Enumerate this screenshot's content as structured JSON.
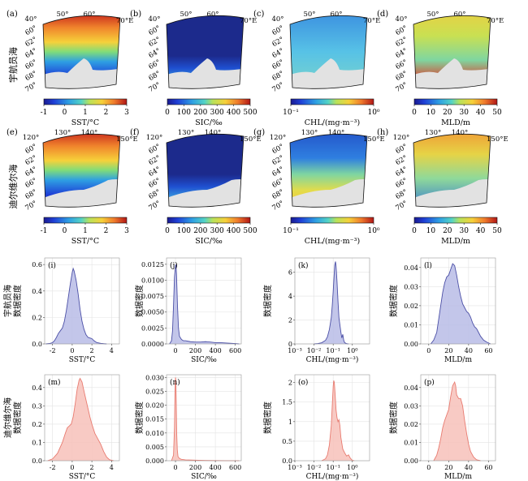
{
  "maps": [
    {
      "label": "(a)",
      "lon_ticks": [
        "40°",
        "50°",
        "60°",
        "70°E"
      ],
      "lat_ticks": [
        "60°",
        "62°",
        "64°",
        "66°",
        "68°",
        "70°"
      ],
      "field": "sst",
      "cmap": "jet",
      "cbar_ticks": [
        "-1",
        "0",
        "1",
        "2",
        "3"
      ],
      "cbar_label": "SST/°C"
    },
    {
      "label": "(b)",
      "lon_ticks": [
        "40°",
        "50°",
        "60°",
        "70°E"
      ],
      "lat_ticks": [
        "60°",
        "62°",
        "64°",
        "66°",
        "68°",
        "70°"
      ],
      "field": "sic",
      "cmap": "jet",
      "cbar_ticks": [
        "0",
        "100",
        "200",
        "300",
        "400",
        "500"
      ],
      "cbar_label": "SIC/‰"
    },
    {
      "label": "(c)",
      "lon_ticks": [
        "40°",
        "50°",
        "60°",
        "70°E"
      ],
      "lat_ticks": [
        "60°",
        "62°",
        "64°",
        "66°",
        "68°",
        "70°"
      ],
      "field": "chl",
      "cmap": "jet",
      "cbar_ticks": [
        "10⁻¹",
        "10⁰"
      ],
      "cbar_label": "CHL/(mg·m⁻³)"
    },
    {
      "label": "(d)",
      "lon_ticks": [
        "40°",
        "50°",
        "60°",
        "70°E"
      ],
      "lat_ticks": [
        "60°",
        "62°",
        "64°",
        "66°",
        "68°",
        "70°"
      ],
      "field": "mld",
      "cmap": "jet",
      "cbar_ticks": [
        "0",
        "10",
        "20",
        "30",
        "40",
        "50"
      ],
      "cbar_label": "MLD/m"
    },
    {
      "label": "(e)",
      "lon_ticks": [
        "120°",
        "130°",
        "140°",
        "150°E"
      ],
      "lat_ticks": [
        "60°",
        "62°",
        "64°",
        "66°",
        "68°",
        "70°"
      ],
      "field": "sst",
      "cmap": "jet",
      "cbar_ticks": [
        "-1",
        "0",
        "1",
        "2",
        "3"
      ],
      "cbar_label": "SST/°C"
    },
    {
      "label": "(f)",
      "lon_ticks": [
        "120°",
        "130°",
        "140°",
        "150°E"
      ],
      "lat_ticks": [
        "60°",
        "62°",
        "64°",
        "66°",
        "68°",
        "70°"
      ],
      "field": "sic",
      "cmap": "jet",
      "cbar_ticks": [
        "0",
        "100",
        "200",
        "300",
        "400",
        "500"
      ],
      "cbar_label": "SIC/‰"
    },
    {
      "label": "(g)",
      "lon_ticks": [
        "120°",
        "130°",
        "140°",
        "150°E"
      ],
      "lat_ticks": [
        "60°",
        "62°",
        "64°",
        "66°",
        "68°",
        "70°"
      ],
      "field": "chl",
      "cmap": "jet",
      "cbar_ticks": [
        "10⁻¹",
        "10⁰"
      ],
      "cbar_label": "CHL/(mg·m⁻³)"
    },
    {
      "label": "(h)",
      "lon_ticks": [
        "120°",
        "130°",
        "140°",
        "150°E"
      ],
      "lat_ticks": [
        "60°",
        "62°",
        "64°",
        "66°",
        "68°",
        "70°"
      ],
      "field": "mld",
      "cmap": "jet",
      "cbar_ticks": [
        "0",
        "10",
        "20",
        "30",
        "40",
        "50"
      ],
      "cbar_label": "MLD/m"
    }
  ],
  "row_labels": [
    "宇航员海",
    "迪尔维尔海"
  ],
  "chart_data": [
    {
      "type": "area",
      "label": "(i)",
      "row_label": "宇航员海",
      "ylabel": "数据密度",
      "xlabel": "SST/°C",
      "xlim": [
        -2.8,
        4.8
      ],
      "xticks": [
        -2,
        0,
        2,
        4
      ],
      "ylim": [
        0,
        0.65
      ],
      "yticks": [
        0.0,
        0.2,
        0.4,
        0.6
      ],
      "color": "#4b4fa6",
      "fill": "#b9bce6",
      "points": [
        [
          -2.7,
          0
        ],
        [
          -2.3,
          0.003
        ],
        [
          -2.0,
          0.01
        ],
        [
          -1.8,
          0.025
        ],
        [
          -1.6,
          0.05
        ],
        [
          -1.4,
          0.08
        ],
        [
          -1.2,
          0.1
        ],
        [
          -1.0,
          0.12
        ],
        [
          -0.8,
          0.17
        ],
        [
          -0.6,
          0.25
        ],
        [
          -0.4,
          0.35
        ],
        [
          -0.2,
          0.45
        ],
        [
          0.0,
          0.54
        ],
        [
          0.1,
          0.57
        ],
        [
          0.2,
          0.55
        ],
        [
          0.4,
          0.48
        ],
        [
          0.6,
          0.38
        ],
        [
          0.8,
          0.26
        ],
        [
          1.0,
          0.17
        ],
        [
          1.2,
          0.11
        ],
        [
          1.4,
          0.07
        ],
        [
          1.6,
          0.05
        ],
        [
          1.8,
          0.045
        ],
        [
          2.0,
          0.04
        ],
        [
          2.2,
          0.025
        ],
        [
          2.5,
          0.01
        ],
        [
          3.0,
          0.003
        ],
        [
          3.5,
          0
        ]
      ]
    },
    {
      "type": "area",
      "label": "(j)",
      "ylabel": "数据密度",
      "xlabel": "SIC/‰",
      "xlim": [
        -90,
        660
      ],
      "xticks": [
        0,
        200,
        400,
        600
      ],
      "ylim": [
        0,
        0.0135
      ],
      "yticks": [
        0.0,
        0.0025,
        0.005,
        0.0075,
        0.01,
        0.0125
      ],
      "ytick_labels": [
        "0.0000",
        "0.0025",
        "0.0050",
        "0.0075",
        "0.0100",
        "0.0125"
      ],
      "color": "#4b4fa6",
      "fill": "#b9bce6",
      "points": [
        [
          -60,
          0
        ],
        [
          -40,
          0.0005
        ],
        [
          -30,
          0.002
        ],
        [
          -20,
          0.006
        ],
        [
          -10,
          0.0105
        ],
        [
          0,
          0.0123
        ],
        [
          5,
          0.0124
        ],
        [
          10,
          0.011
        ],
        [
          20,
          0.006
        ],
        [
          30,
          0.0025
        ],
        [
          40,
          0.0012
        ],
        [
          60,
          0.0007
        ],
        [
          80,
          0.0005
        ],
        [
          100,
          0.0005
        ],
        [
          150,
          0.00035
        ],
        [
          200,
          0.0003
        ],
        [
          250,
          0.0003
        ],
        [
          300,
          0.00035
        ],
        [
          350,
          0.0003
        ],
        [
          400,
          0.0002
        ],
        [
          450,
          0.0002
        ],
        [
          500,
          0.00015
        ],
        [
          550,
          0.0001
        ],
        [
          600,
          5e-05
        ],
        [
          640,
          0
        ]
      ]
    },
    {
      "type": "area",
      "label": "(k)",
      "ylabel": "数据密度",
      "xlabel": "CHL/(mg·m⁻³)",
      "xscale": "log",
      "xlim_log10": [
        -3,
        0.9
      ],
      "xticks": [
        "10⁻³",
        "10⁻²",
        "10⁻¹",
        "10⁰"
      ],
      "ylim": [
        0,
        7.2
      ],
      "yticks": [
        0,
        2,
        4,
        6
      ],
      "color": "#4b4fa6",
      "fill": "#b9bce6",
      "points": [
        [
          -2.0,
          0
        ],
        [
          -1.8,
          0.03
        ],
        [
          -1.6,
          0.1
        ],
        [
          -1.4,
          0.3
        ],
        [
          -1.3,
          0.6
        ],
        [
          -1.2,
          1.2
        ],
        [
          -1.1,
          2.2
        ],
        [
          -1.05,
          3.2
        ],
        [
          -1.0,
          4.4
        ],
        [
          -0.95,
          5.8
        ],
        [
          -0.92,
          6.6
        ],
        [
          -0.88,
          6.9
        ],
        [
          -0.85,
          6.5
        ],
        [
          -0.8,
          5.2
        ],
        [
          -0.75,
          3.6
        ],
        [
          -0.7,
          2.2
        ],
        [
          -0.6,
          1.0
        ],
        [
          -0.55,
          0.5
        ],
        [
          -0.5,
          0.8
        ],
        [
          -0.45,
          0.3
        ],
        [
          -0.4,
          0.1
        ],
        [
          -0.3,
          0.02
        ],
        [
          -0.2,
          0
        ]
      ]
    },
    {
      "type": "area",
      "label": "(l)",
      "ylabel": "数据密度",
      "xlabel": "MLD/m",
      "xlim": [
        -8,
        67
      ],
      "xticks": [
        0,
        20,
        40,
        60
      ],
      "ylim": [
        0,
        0.045
      ],
      "yticks": [
        0.0,
        0.01,
        0.02,
        0.03,
        0.04
      ],
      "color": "#4b4fa6",
      "fill": "#b9bce6",
      "points": [
        [
          2,
          0
        ],
        [
          5,
          0.002
        ],
        [
          8,
          0.006
        ],
        [
          10,
          0.013
        ],
        [
          12,
          0.02
        ],
        [
          14,
          0.027
        ],
        [
          16,
          0.032
        ],
        [
          18,
          0.035
        ],
        [
          20,
          0.036
        ],
        [
          22,
          0.039
        ],
        [
          24,
          0.042
        ],
        [
          26,
          0.041
        ],
        [
          28,
          0.036
        ],
        [
          30,
          0.03
        ],
        [
          32,
          0.025
        ],
        [
          34,
          0.021
        ],
        [
          36,
          0.019
        ],
        [
          38,
          0.017
        ],
        [
          40,
          0.016
        ],
        [
          42,
          0.014
        ],
        [
          44,
          0.011
        ],
        [
          46,
          0.009
        ],
        [
          48,
          0.008
        ],
        [
          50,
          0.006
        ],
        [
          52,
          0.004
        ],
        [
          55,
          0.002
        ],
        [
          58,
          0.001
        ],
        [
          62,
          0
        ]
      ]
    },
    {
      "type": "area",
      "label": "(m)",
      "row_label": "迪尔维尔海",
      "ylabel": "数据密度",
      "xlabel": "SST/°C",
      "xlim": [
        -2.8,
        4.8
      ],
      "xticks": [
        -2,
        0,
        2,
        4
      ],
      "ylim": [
        0,
        0.47
      ],
      "yticks": [
        0.0,
        0.1,
        0.2,
        0.3,
        0.4
      ],
      "color": "#e87b70",
      "fill": "#f7c1ba",
      "points": [
        [
          -2.5,
          0
        ],
        [
          -2.0,
          0.01
        ],
        [
          -1.5,
          0.04
        ],
        [
          -1.0,
          0.1
        ],
        [
          -0.7,
          0.15
        ],
        [
          -0.5,
          0.18
        ],
        [
          -0.3,
          0.19
        ],
        [
          -0.1,
          0.2
        ],
        [
          0.1,
          0.24
        ],
        [
          0.3,
          0.31
        ],
        [
          0.5,
          0.39
        ],
        [
          0.7,
          0.44
        ],
        [
          0.8,
          0.45
        ],
        [
          1.0,
          0.43
        ],
        [
          1.2,
          0.38
        ],
        [
          1.5,
          0.31
        ],
        [
          1.8,
          0.24
        ],
        [
          2.0,
          0.2
        ],
        [
          2.3,
          0.15
        ],
        [
          2.6,
          0.12
        ],
        [
          2.9,
          0.09
        ],
        [
          3.2,
          0.05
        ],
        [
          3.5,
          0.02
        ],
        [
          3.8,
          0.005
        ],
        [
          4.2,
          0
        ]
      ]
    },
    {
      "type": "area",
      "label": "(n)",
      "ylabel": "数据密度",
      "xlabel": "SIC/‰",
      "xlim": [
        -90,
        660
      ],
      "xticks": [
        0,
        200,
        400,
        600
      ],
      "ylim": [
        0,
        0.031
      ],
      "yticks": [
        0.0,
        0.005,
        0.01,
        0.015,
        0.02,
        0.025,
        0.03
      ],
      "ytick_labels": [
        "0.000",
        "0.005",
        "0.010",
        "0.015",
        "0.020",
        "0.025",
        "0.030"
      ],
      "color": "#e87b70",
      "fill": "#f7c1ba",
      "points": [
        [
          -40,
          0
        ],
        [
          -20,
          0.002
        ],
        [
          -10,
          0.012
        ],
        [
          -5,
          0.025
        ],
        [
          0,
          0.03
        ],
        [
          4,
          0.029
        ],
        [
          8,
          0.02
        ],
        [
          12,
          0.01
        ],
        [
          18,
          0.004
        ],
        [
          25,
          0.0015
        ],
        [
          40,
          0.0008
        ],
        [
          60,
          0.0005
        ],
        [
          100,
          0.0003
        ],
        [
          200,
          0.0002
        ],
        [
          300,
          0.0001
        ],
        [
          400,
          5e-05
        ],
        [
          500,
          3e-05
        ],
        [
          600,
          2e-05
        ],
        [
          640,
          0
        ]
      ]
    },
    {
      "type": "area",
      "label": "(o)",
      "ylabel": "数据密度",
      "xlabel": "CHL/(mg·m⁻³)",
      "xscale": "log",
      "xlim_log10": [
        -3,
        0.9
      ],
      "xticks": [
        "10⁻³",
        "10⁻²",
        "10⁻¹",
        "10⁰"
      ],
      "ylim": [
        0,
        2.2
      ],
      "yticks": [
        0.0,
        0.5,
        1.0,
        1.5,
        2.0
      ],
      "color": "#e87b70",
      "fill": "#f7c1ba",
      "points": [
        [
          -1.6,
          0
        ],
        [
          -1.4,
          0.05
        ],
        [
          -1.3,
          0.15
        ],
        [
          -1.2,
          0.4
        ],
        [
          -1.1,
          0.9
        ],
        [
          -1.05,
          1.4
        ],
        [
          -1.0,
          1.9
        ],
        [
          -0.97,
          2.05
        ],
        [
          -0.94,
          2.0
        ],
        [
          -0.9,
          1.7
        ],
        [
          -0.85,
          1.3
        ],
        [
          -0.8,
          1.1
        ],
        [
          -0.75,
          1.0
        ],
        [
          -0.7,
          1.05
        ],
        [
          -0.65,
          0.9
        ],
        [
          -0.6,
          0.6
        ],
        [
          -0.5,
          0.3
        ],
        [
          -0.4,
          0.2
        ],
        [
          -0.3,
          0.12
        ],
        [
          -0.2,
          0.15
        ],
        [
          -0.1,
          0.06
        ],
        [
          0.0,
          0.01
        ],
        [
          0.1,
          0
        ]
      ]
    },
    {
      "type": "area",
      "label": "(p)",
      "ylabel": "数据密度",
      "xlabel": "MLD/m",
      "xlim": [
        -8,
        67
      ],
      "xticks": [
        0,
        20,
        40,
        60
      ],
      "ylim": [
        0,
        0.047
      ],
      "yticks": [
        0.0,
        0.01,
        0.02,
        0.03,
        0.04
      ],
      "color": "#e87b70",
      "fill": "#f7c1ba",
      "points": [
        [
          5,
          0
        ],
        [
          8,
          0.003
        ],
        [
          10,
          0.007
        ],
        [
          12,
          0.012
        ],
        [
          14,
          0.018
        ],
        [
          16,
          0.022
        ],
        [
          18,
          0.025
        ],
        [
          20,
          0.028
        ],
        [
          22,
          0.035
        ],
        [
          24,
          0.041
        ],
        [
          26,
          0.043
        ],
        [
          27,
          0.041
        ],
        [
          28,
          0.036
        ],
        [
          30,
          0.034
        ],
        [
          32,
          0.034
        ],
        [
          34,
          0.03
        ],
        [
          36,
          0.022
        ],
        [
          38,
          0.015
        ],
        [
          40,
          0.009
        ],
        [
          42,
          0.005
        ],
        [
          45,
          0.002
        ],
        [
          48,
          0.0005
        ],
        [
          52,
          0
        ]
      ]
    }
  ]
}
